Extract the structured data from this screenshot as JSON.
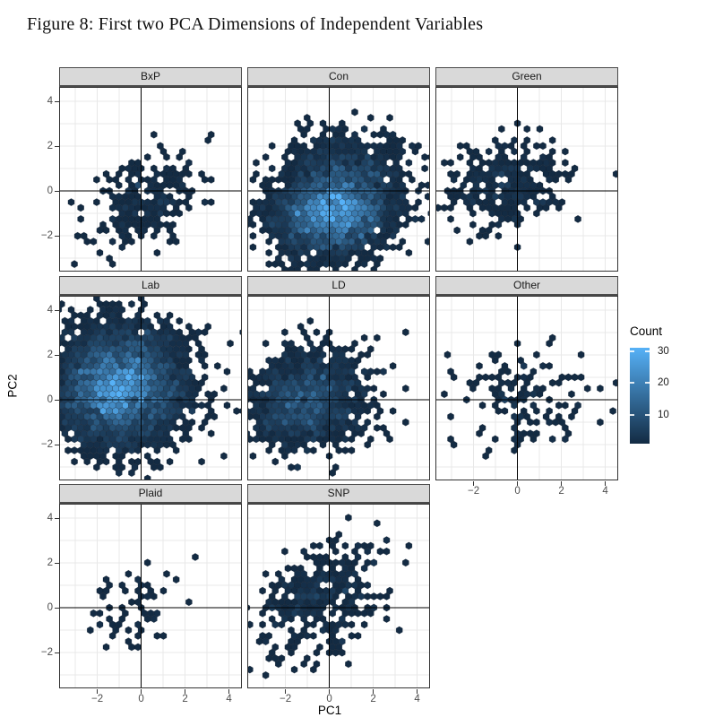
{
  "caption": "Figure 8: First two PCA Dimensions of Independent Variables",
  "chart_data": {
    "type": "hexbin",
    "title": "Figure 8: First two PCA Dimensions of Independent Variables",
    "xlabel": "PC1",
    "ylabel": "PC2",
    "x_ticks": [
      -2,
      0,
      2,
      4
    ],
    "y_ticks": [
      -2,
      0,
      2,
      4
    ],
    "x_range": [
      -3.7,
      4.55
    ],
    "y_range": [
      -3.56,
      4.6
    ],
    "grid_step": 1,
    "hex_width": 0.29,
    "colors": {
      "hex_low": "#132B43",
      "hex_high": "#56B1F7",
      "panel_bg": "#ffffff",
      "grid": "#e8e8e8",
      "strip_bg": "#d9d9d9",
      "panel_border": "#333333",
      "crosshair": "#000000",
      "tick_text": "#4d4d4d"
    },
    "legend": {
      "title": "Count",
      "ticks": [
        30,
        20,
        10
      ],
      "domain": [
        1,
        31
      ]
    },
    "facets": [
      {
        "name": "BxP",
        "row": 0,
        "col": 0,
        "seed": 11,
        "parts": [
          {
            "n": 230,
            "center": [
              0.2,
              -0.4
            ],
            "sd": [
              1.25,
              1.1
            ],
            "rho": 0.35
          }
        ]
      },
      {
        "name": "Con",
        "row": 0,
        "col": 1,
        "seed": 22,
        "parts": [
          {
            "n": 3000,
            "center": [
              0.2,
              -0.9
            ],
            "sd": [
              1.3,
              0.95
            ],
            "rho": 0.1
          },
          {
            "n": 500,
            "center": [
              0.8,
              1.0
            ],
            "sd": [
              1.4,
              0.9
            ],
            "rho": 0.0
          }
        ]
      },
      {
        "name": "Green",
        "row": 0,
        "col": 2,
        "seed": 33,
        "parts": [
          {
            "n": 300,
            "center": [
              -0.5,
              0.3
            ],
            "sd": [
              1.35,
              0.95
            ],
            "rho": 0.05
          }
        ]
      },
      {
        "name": "Lab",
        "row": 1,
        "col": 0,
        "seed": 44,
        "parts": [
          {
            "n": 3600,
            "center": [
              -0.9,
              0.7
            ],
            "sd": [
              1.55,
              1.35
            ],
            "rho": 0.0
          },
          {
            "n": 600,
            "center": [
              -1.4,
              0.15
            ],
            "sd": [
              0.95,
              0.85
            ],
            "rho": 0.0
          }
        ]
      },
      {
        "name": "LD",
        "row": 1,
        "col": 1,
        "seed": 55,
        "parts": [
          {
            "n": 1100,
            "center": [
              -0.9,
              0.05
            ],
            "sd": [
              1.35,
              1.1
            ],
            "rho": 0.05
          },
          {
            "n": 250,
            "center": [
              -1.6,
              -0.3
            ],
            "sd": [
              0.8,
              0.7
            ],
            "rho": 0.0
          }
        ]
      },
      {
        "name": "Other",
        "row": 1,
        "col": 2,
        "seed": 66,
        "parts": [
          {
            "n": 150,
            "center": [
              0.3,
              -0.2
            ],
            "sd": [
              1.5,
              1.15
            ],
            "rho": -0.05
          }
        ]
      },
      {
        "name": "Plaid",
        "row": 2,
        "col": 0,
        "seed": 77,
        "parts": [
          {
            "n": 60,
            "center": [
              -0.4,
              0.0
            ],
            "sd": [
              1.25,
              1.0
            ],
            "rho": 0.3
          }
        ]
      },
      {
        "name": "SNP",
        "row": 2,
        "col": 1,
        "seed": 88,
        "parts": [
          {
            "n": 380,
            "center": [
              -0.4,
              0.4
            ],
            "sd": [
              1.4,
              1.3
            ],
            "rho": 0.3
          }
        ]
      }
    ]
  }
}
